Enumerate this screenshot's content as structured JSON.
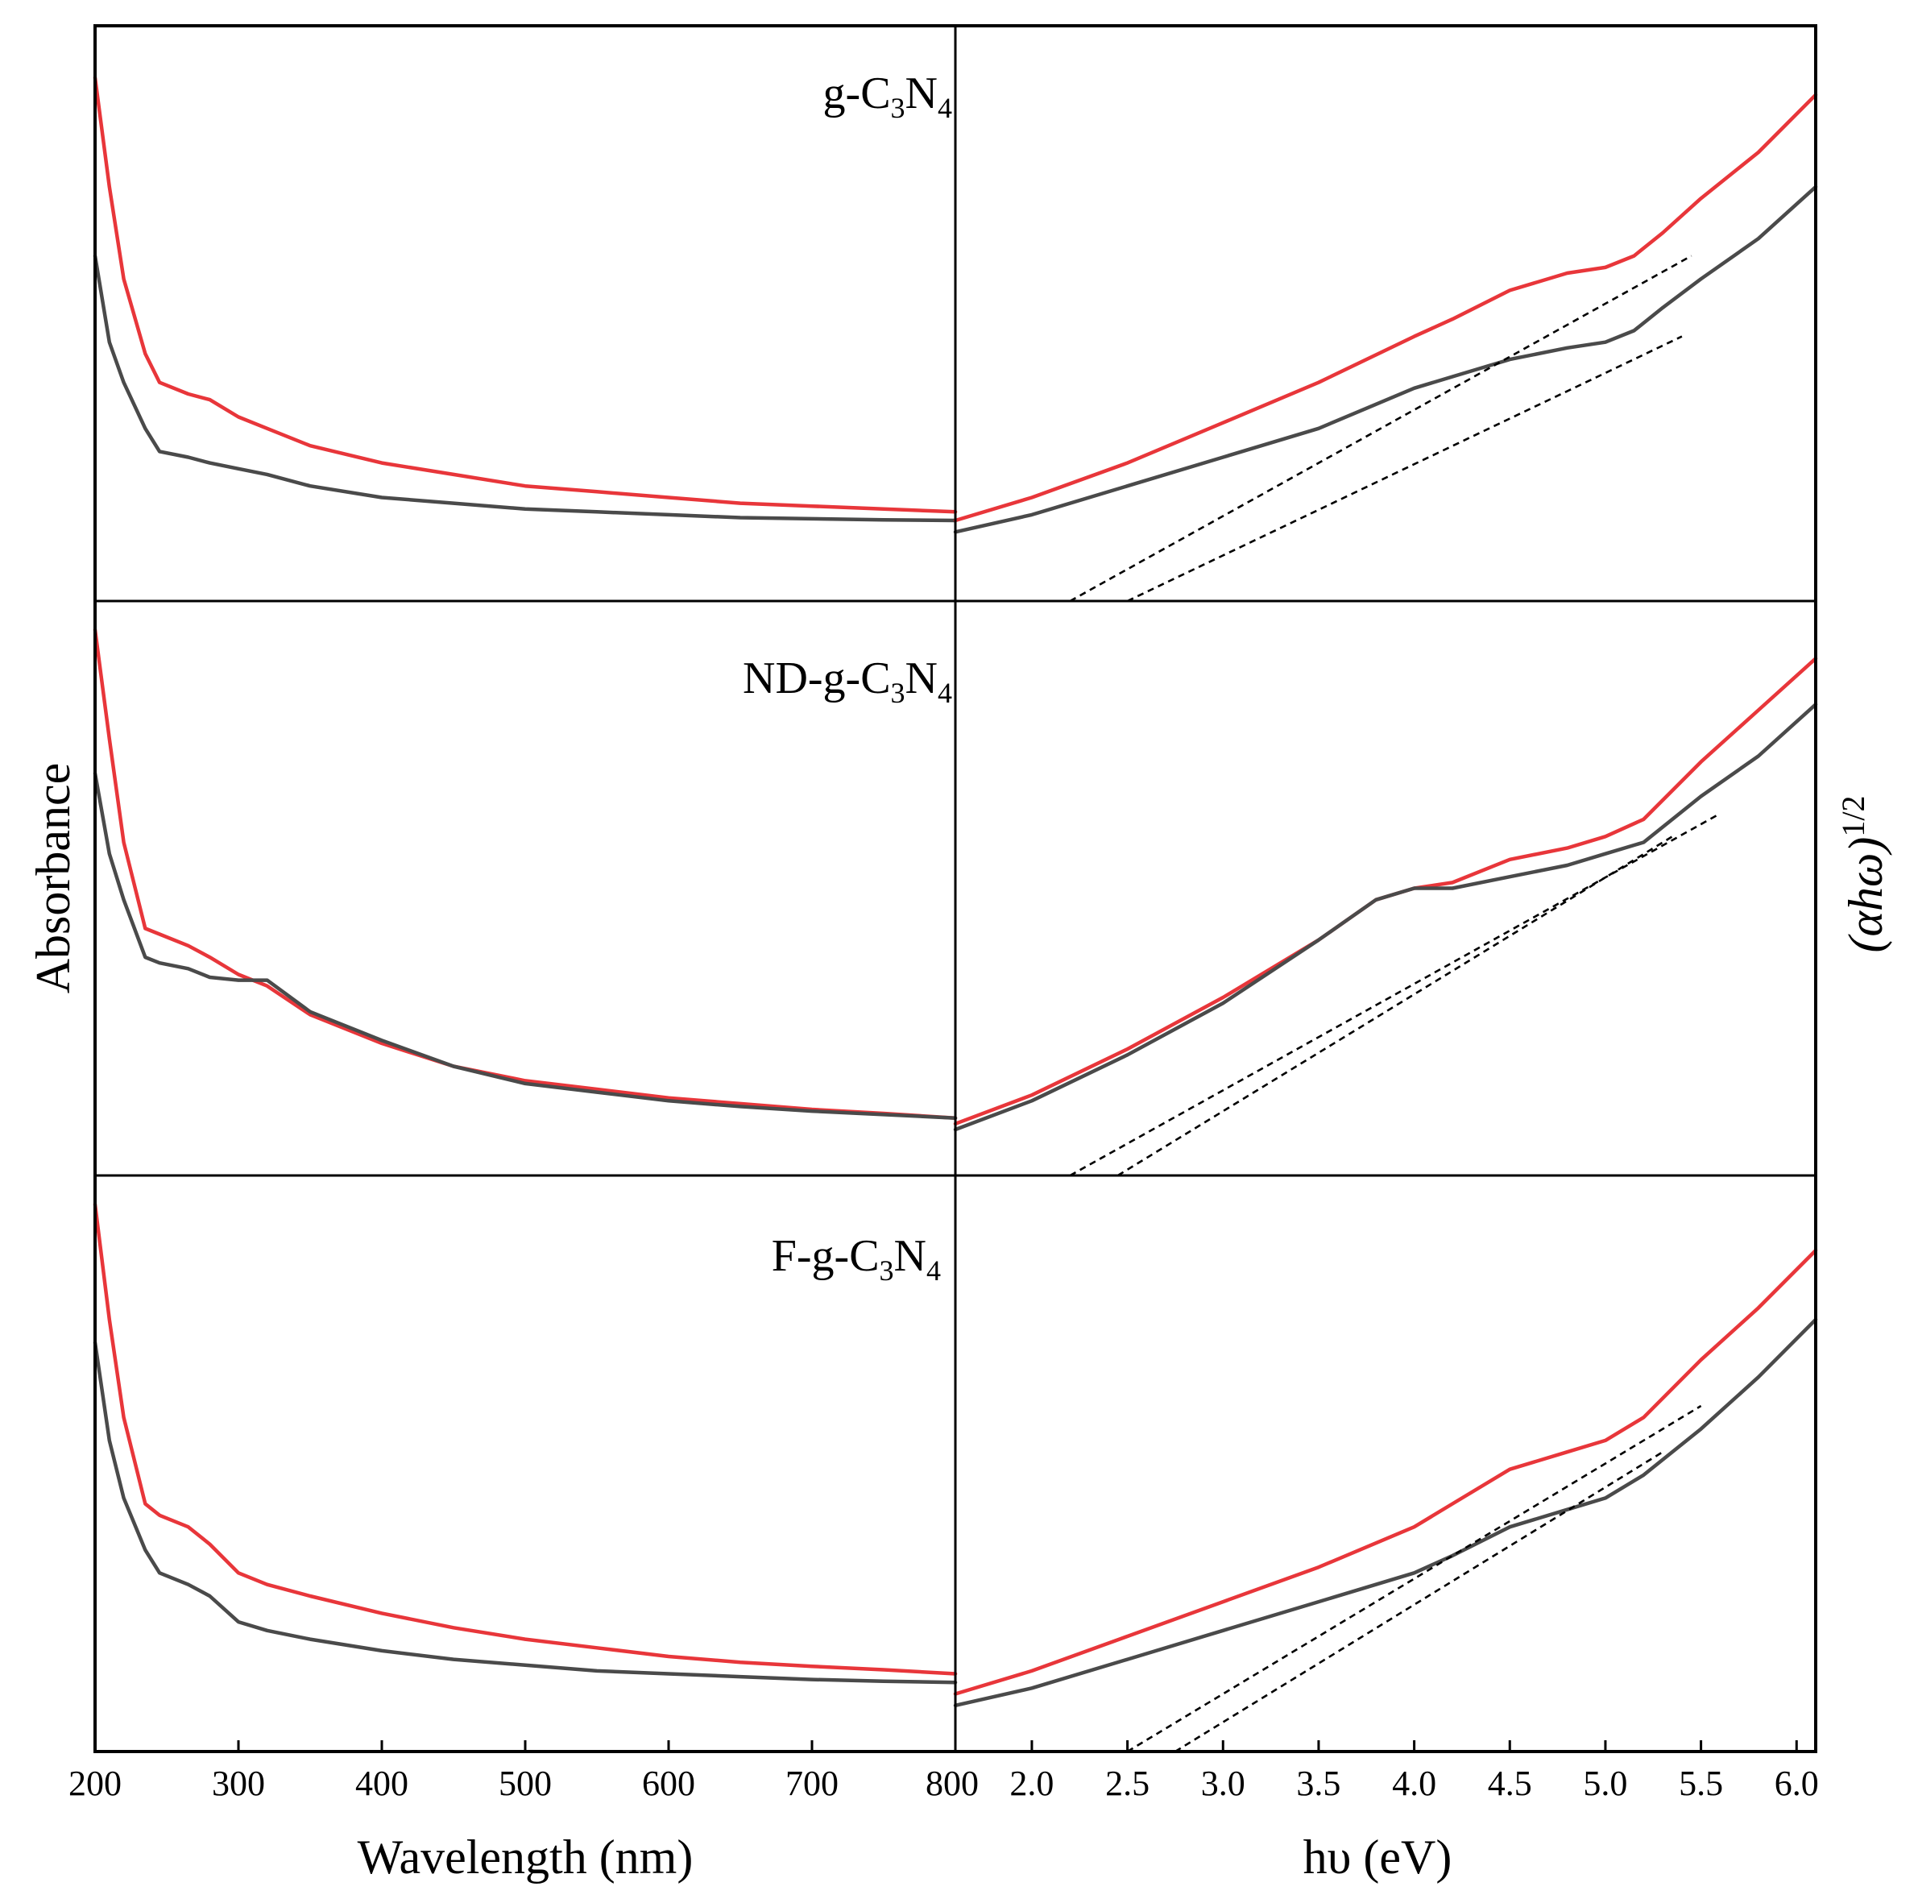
{
  "colors": {
    "sample": "#e8363a",
    "reference": "#4a4a4a",
    "fit": "#000000"
  },
  "chart_data": {
    "type": "line",
    "y_axis_left_label": "Absorbance",
    "y_axis_right_label": {
      "base": "(αhω)",
      "exponent": "1/2"
    },
    "left_axis": {
      "label": "Wavelength (nm)",
      "range": [
        200,
        800
      ],
      "ticks": [
        "200",
        "300",
        "400",
        "500",
        "600",
        "700",
        "800"
      ]
    },
    "right_axis": {
      "label": "hυ (eV)",
      "range": [
        1.6,
        6.1
      ],
      "ticks": [
        "2.0",
        "2.5",
        "3.0",
        "3.5",
        "4.0",
        "4.5",
        "5.0",
        "5.5",
        "6.0"
      ]
    },
    "panels": [
      {
        "label": {
          "prefix": "g-C",
          "sub1": "3",
          "mid": "N",
          "sub2": "4"
        },
        "absorbance": [
          {
            "name": "red",
            "x": [
              200,
              210,
              220,
              235,
              245,
              265,
              280,
              300,
              320,
              350,
              400,
              450,
              500,
              550,
              600,
              650,
              700,
              750,
              800
            ],
            "y": [
              0.91,
              0.72,
              0.56,
              0.43,
              0.38,
              0.36,
              0.35,
              0.32,
              0.3,
              0.27,
              0.24,
              0.22,
              0.2,
              0.19,
              0.18,
              0.17,
              0.165,
              0.16,
              0.155
            ]
          },
          {
            "name": "black",
            "x": [
              200,
              210,
              220,
              235,
              245,
              265,
              280,
              300,
              320,
              350,
              400,
              450,
              500,
              550,
              600,
              650,
              700,
              750,
              800
            ],
            "y": [
              0.6,
              0.45,
              0.38,
              0.3,
              0.26,
              0.25,
              0.24,
              0.23,
              0.22,
              0.2,
              0.18,
              0.17,
              0.16,
              0.155,
              0.15,
              0.145,
              0.143,
              0.141,
              0.14
            ]
          }
        ],
        "tauc": [
          {
            "name": "red",
            "x": [
              1.6,
              2.0,
              2.5,
              3.0,
              3.5,
              4.0,
              4.2,
              4.5,
              4.8,
              5.0,
              5.15,
              5.3,
              5.5,
              5.8,
              6.1
            ],
            "y": [
              0.14,
              0.18,
              0.24,
              0.31,
              0.38,
              0.46,
              0.49,
              0.54,
              0.57,
              0.58,
              0.6,
              0.64,
              0.7,
              0.78,
              0.88
            ]
          },
          {
            "name": "black",
            "x": [
              1.6,
              2.0,
              2.5,
              3.0,
              3.5,
              4.0,
              4.2,
              4.5,
              4.8,
              5.0,
              5.15,
              5.3,
              5.5,
              5.8,
              6.1
            ],
            "y": [
              0.12,
              0.15,
              0.2,
              0.25,
              0.3,
              0.37,
              0.39,
              0.42,
              0.44,
              0.45,
              0.47,
              0.51,
              0.56,
              0.63,
              0.72
            ]
          }
        ],
        "fits": [
          {
            "x": [
              2.2,
              5.45
            ],
            "y": [
              0.0,
              0.6
            ]
          },
          {
            "x": [
              2.5,
              5.4
            ],
            "y": [
              0.0,
              0.46
            ]
          }
        ]
      },
      {
        "label": {
          "prefix": "ND-g-C",
          "sub1": "3",
          "mid": "N",
          "sub2": "4"
        },
        "absorbance": [
          {
            "name": "red",
            "x": [
              200,
              210,
              220,
              235,
              245,
              265,
              280,
              300,
              320,
              350,
              400,
              450,
              500,
              550,
              600,
              650,
              700,
              750,
              800
            ],
            "y": [
              0.95,
              0.76,
              0.58,
              0.43,
              0.42,
              0.4,
              0.38,
              0.35,
              0.33,
              0.28,
              0.23,
              0.19,
              0.165,
              0.15,
              0.135,
              0.125,
              0.115,
              0.108,
              0.1
            ]
          },
          {
            "name": "black",
            "x": [
              200,
              210,
              220,
              235,
              245,
              265,
              280,
              300,
              320,
              350,
              400,
              450,
              500,
              550,
              600,
              650,
              700,
              750,
              800
            ],
            "y": [
              0.7,
              0.56,
              0.48,
              0.38,
              0.37,
              0.36,
              0.345,
              0.34,
              0.34,
              0.285,
              0.235,
              0.19,
              0.16,
              0.145,
              0.13,
              0.12,
              0.112,
              0.106,
              0.1
            ]
          }
        ],
        "tauc": [
          {
            "name": "red",
            "x": [
              1.6,
              2.0,
              2.5,
              3.0,
              3.5,
              3.8,
              4.0,
              4.2,
              4.5,
              4.8,
              5.0,
              5.2,
              5.5,
              5.8,
              6.1
            ],
            "y": [
              0.09,
              0.14,
              0.22,
              0.31,
              0.41,
              0.48,
              0.5,
              0.51,
              0.55,
              0.57,
              0.59,
              0.62,
              0.72,
              0.81,
              0.9
            ]
          },
          {
            "name": "black",
            "x": [
              1.6,
              2.0,
              2.5,
              3.0,
              3.5,
              3.8,
              4.0,
              4.2,
              4.5,
              4.8,
              5.0,
              5.2,
              5.5,
              5.8,
              6.1
            ],
            "y": [
              0.08,
              0.13,
              0.21,
              0.3,
              0.41,
              0.48,
              0.5,
              0.5,
              0.52,
              0.54,
              0.56,
              0.58,
              0.66,
              0.73,
              0.82
            ]
          }
        ],
        "fits": [
          {
            "x": [
              2.2,
              5.6
            ],
            "y": [
              0.0,
              0.63
            ]
          },
          {
            "x": [
              2.45,
              5.35
            ],
            "y": [
              0.0,
              0.59
            ]
          }
        ]
      },
      {
        "label": {
          "prefix": "F-g-C",
          "sub1": "3",
          "mid": "N",
          "sub2": "4"
        },
        "absorbance": [
          {
            "name": "red",
            "x": [
              200,
              210,
              220,
              235,
              245,
              265,
              280,
              300,
              320,
              350,
              400,
              450,
              500,
              550,
              600,
              650,
              700,
              750,
              800
            ],
            "y": [
              0.95,
              0.75,
              0.58,
              0.43,
              0.41,
              0.39,
              0.36,
              0.31,
              0.29,
              0.27,
              0.24,
              0.215,
              0.195,
              0.18,
              0.165,
              0.155,
              0.148,
              0.142,
              0.135
            ]
          },
          {
            "name": "black",
            "x": [
              200,
              210,
              220,
              235,
              245,
              265,
              280,
              300,
              320,
              350,
              400,
              450,
              500,
              550,
              600,
              650,
              700,
              750,
              800
            ],
            "y": [
              0.71,
              0.54,
              0.44,
              0.35,
              0.31,
              0.29,
              0.27,
              0.225,
              0.21,
              0.195,
              0.175,
              0.16,
              0.15,
              0.14,
              0.135,
              0.13,
              0.125,
              0.122,
              0.12
            ]
          }
        ],
        "tauc": [
          {
            "name": "red",
            "x": [
              1.6,
              2.0,
              2.5,
              3.0,
              3.5,
              4.0,
              4.2,
              4.5,
              4.8,
              5.0,
              5.2,
              5.5,
              5.8,
              6.1
            ],
            "y": [
              0.1,
              0.14,
              0.2,
              0.26,
              0.32,
              0.39,
              0.43,
              0.49,
              0.52,
              0.54,
              0.58,
              0.68,
              0.77,
              0.87
            ]
          },
          {
            "name": "black",
            "x": [
              1.6,
              2.0,
              2.5,
              3.0,
              3.5,
              4.0,
              4.2,
              4.5,
              4.8,
              5.0,
              5.2,
              5.5,
              5.8,
              6.1
            ],
            "y": [
              0.08,
              0.11,
              0.16,
              0.21,
              0.26,
              0.31,
              0.34,
              0.39,
              0.42,
              0.44,
              0.48,
              0.56,
              0.65,
              0.75
            ]
          }
        ],
        "fits": [
          {
            "x": [
              2.5,
              5.5
            ],
            "y": [
              0.0,
              0.6
            ]
          },
          {
            "x": [
              2.75,
              5.3
            ],
            "y": [
              0.0,
              0.52
            ]
          }
        ]
      }
    ]
  }
}
